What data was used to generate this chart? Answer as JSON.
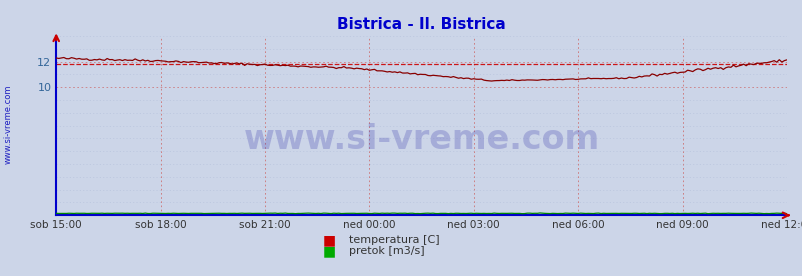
{
  "title": "Bistrica - Il. Bistrica",
  "title_color": "#0000cc",
  "bg_color": "#ccd5e8",
  "plot_bg_color": "#ccd5e8",
  "x_labels": [
    "sob 15:00",
    "sob 18:00",
    "sob 21:00",
    "ned 00:00",
    "ned 03:00",
    "ned 06:00",
    "ned 09:00",
    "ned 12:00"
  ],
  "x_ticks_count": 8,
  "ylim": [
    0,
    14.0
  ],
  "yticks": [
    10,
    12
  ],
  "temp_color": "#880000",
  "temp_avg_color": "#cc0000",
  "flow_color": "#008800",
  "axis_color": "#0000cc",
  "grid_color_v": "#cc6666",
  "grid_color_h": "#cc6666",
  "grid_color_h2": "#99aacc",
  "watermark": "www.si-vreme.com",
  "watermark_color": "#3333aa",
  "ylabel_text": "www.si-vreme.com",
  "ylabel_color": "#0000bb",
  "legend_labels": [
    "temperatura [C]",
    "pretok [m3/s]"
  ],
  "legend_colors": [
    "#cc0000",
    "#00aa00"
  ],
  "temp_avg_value": 11.8,
  "n_points": 288
}
